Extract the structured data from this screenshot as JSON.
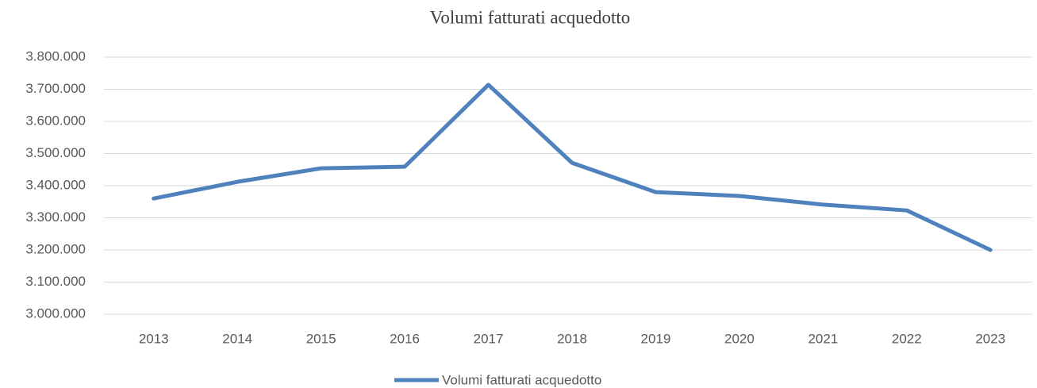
{
  "chart_data": {
    "type": "line",
    "title": "Volumi fatturati acquedotto",
    "categories": [
      "2013",
      "2014",
      "2015",
      "2016",
      "2017",
      "2018",
      "2019",
      "2020",
      "2021",
      "2022",
      "2023"
    ],
    "series": [
      {
        "name": "Volumi fatturati acquedotto",
        "color": "#4f81bd",
        "values": [
          3360000,
          3412000,
          3454000,
          3459000,
          3714000,
          3471000,
          3380000,
          3368000,
          3341000,
          3323000,
          3200000
        ]
      }
    ],
    "ylim": [
      3000000,
      3800000
    ],
    "yticks": [
      {
        "value": 3000000,
        "label": "3.000.000"
      },
      {
        "value": 3100000,
        "label": "3.100.000"
      },
      {
        "value": 3200000,
        "label": "3.200.000"
      },
      {
        "value": 3300000,
        "label": "3.300.000"
      },
      {
        "value": 3400000,
        "label": "3.400.000"
      },
      {
        "value": 3500000,
        "label": "3.500.000"
      },
      {
        "value": 3600000,
        "label": "3.600.000"
      },
      {
        "value": 3700000,
        "label": "3.700.000"
      },
      {
        "value": 3800000,
        "label": "3.800.000"
      }
    ],
    "grid": true,
    "legend": "bottom"
  }
}
